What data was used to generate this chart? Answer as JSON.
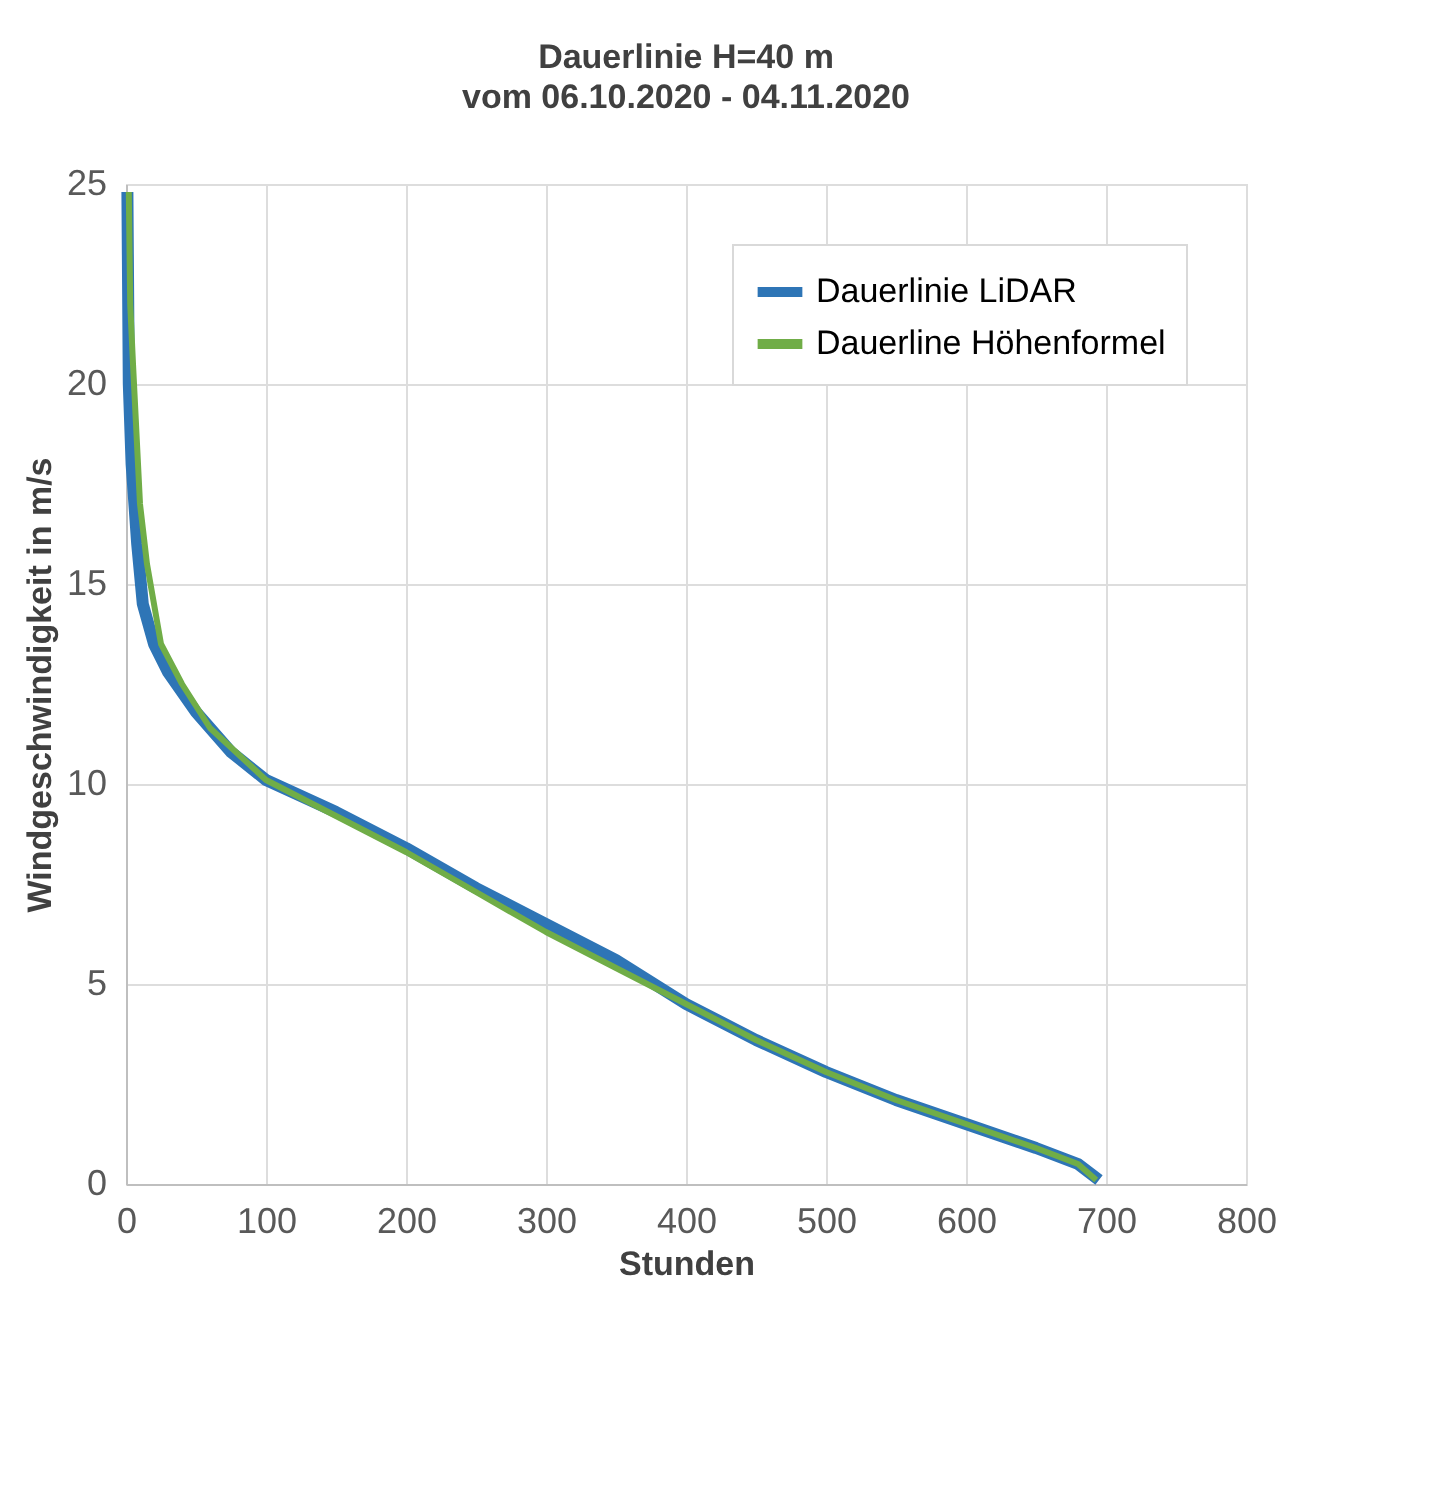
{
  "chart_data": {
    "type": "line",
    "title": "Dauerlinie H=40 m",
    "subtitle": "vom 06.10.2020 - 04.11.2020",
    "xlabel": "Stunden",
    "ylabel": "Windgeschwindigkeit in m/s",
    "xlim": [
      0,
      800
    ],
    "xticks": [
      0,
      100,
      200,
      300,
      400,
      500,
      600,
      700,
      800
    ],
    "ylim": [
      0,
      25
    ],
    "yticks": [
      0,
      5,
      10,
      15,
      20,
      25
    ],
    "grid": true,
    "legend": "top right",
    "marker": "none",
    "line_style": "solid",
    "series": [
      {
        "name": "Dauerlinie LiDAR",
        "color": "#2e75b6",
        "x": [
          1,
          2,
          4,
          8,
          12,
          20,
          30,
          50,
          75,
          100,
          150,
          200,
          250,
          300,
          350,
          400,
          450,
          500,
          550,
          600,
          650,
          680,
          695
        ],
        "values": [
          24.8,
          20,
          18,
          16,
          14.5,
          13.5,
          12.8,
          11.8,
          10.8,
          10.1,
          9.3,
          8.4,
          7.4,
          6.5,
          5.6,
          4.5,
          3.6,
          2.8,
          2.1,
          1.5,
          0.9,
          0.5,
          0.1
        ]
      },
      {
        "name": "Dauerline Höhenformel",
        "color": "#70ad47",
        "x": [
          2,
          3,
          5,
          10,
          15,
          25,
          40,
          60,
          100,
          150,
          200,
          250,
          300,
          350,
          400,
          450,
          500,
          550,
          600,
          650,
          680,
          693
        ],
        "values": [
          24.8,
          22,
          20.5,
          17,
          15.5,
          13.5,
          12.5,
          11.4,
          10.1,
          9.2,
          8.3,
          7.3,
          6.3,
          5.4,
          4.5,
          3.6,
          2.8,
          2.1,
          1.5,
          0.9,
          0.5,
          0.1
        ]
      }
    ]
  }
}
